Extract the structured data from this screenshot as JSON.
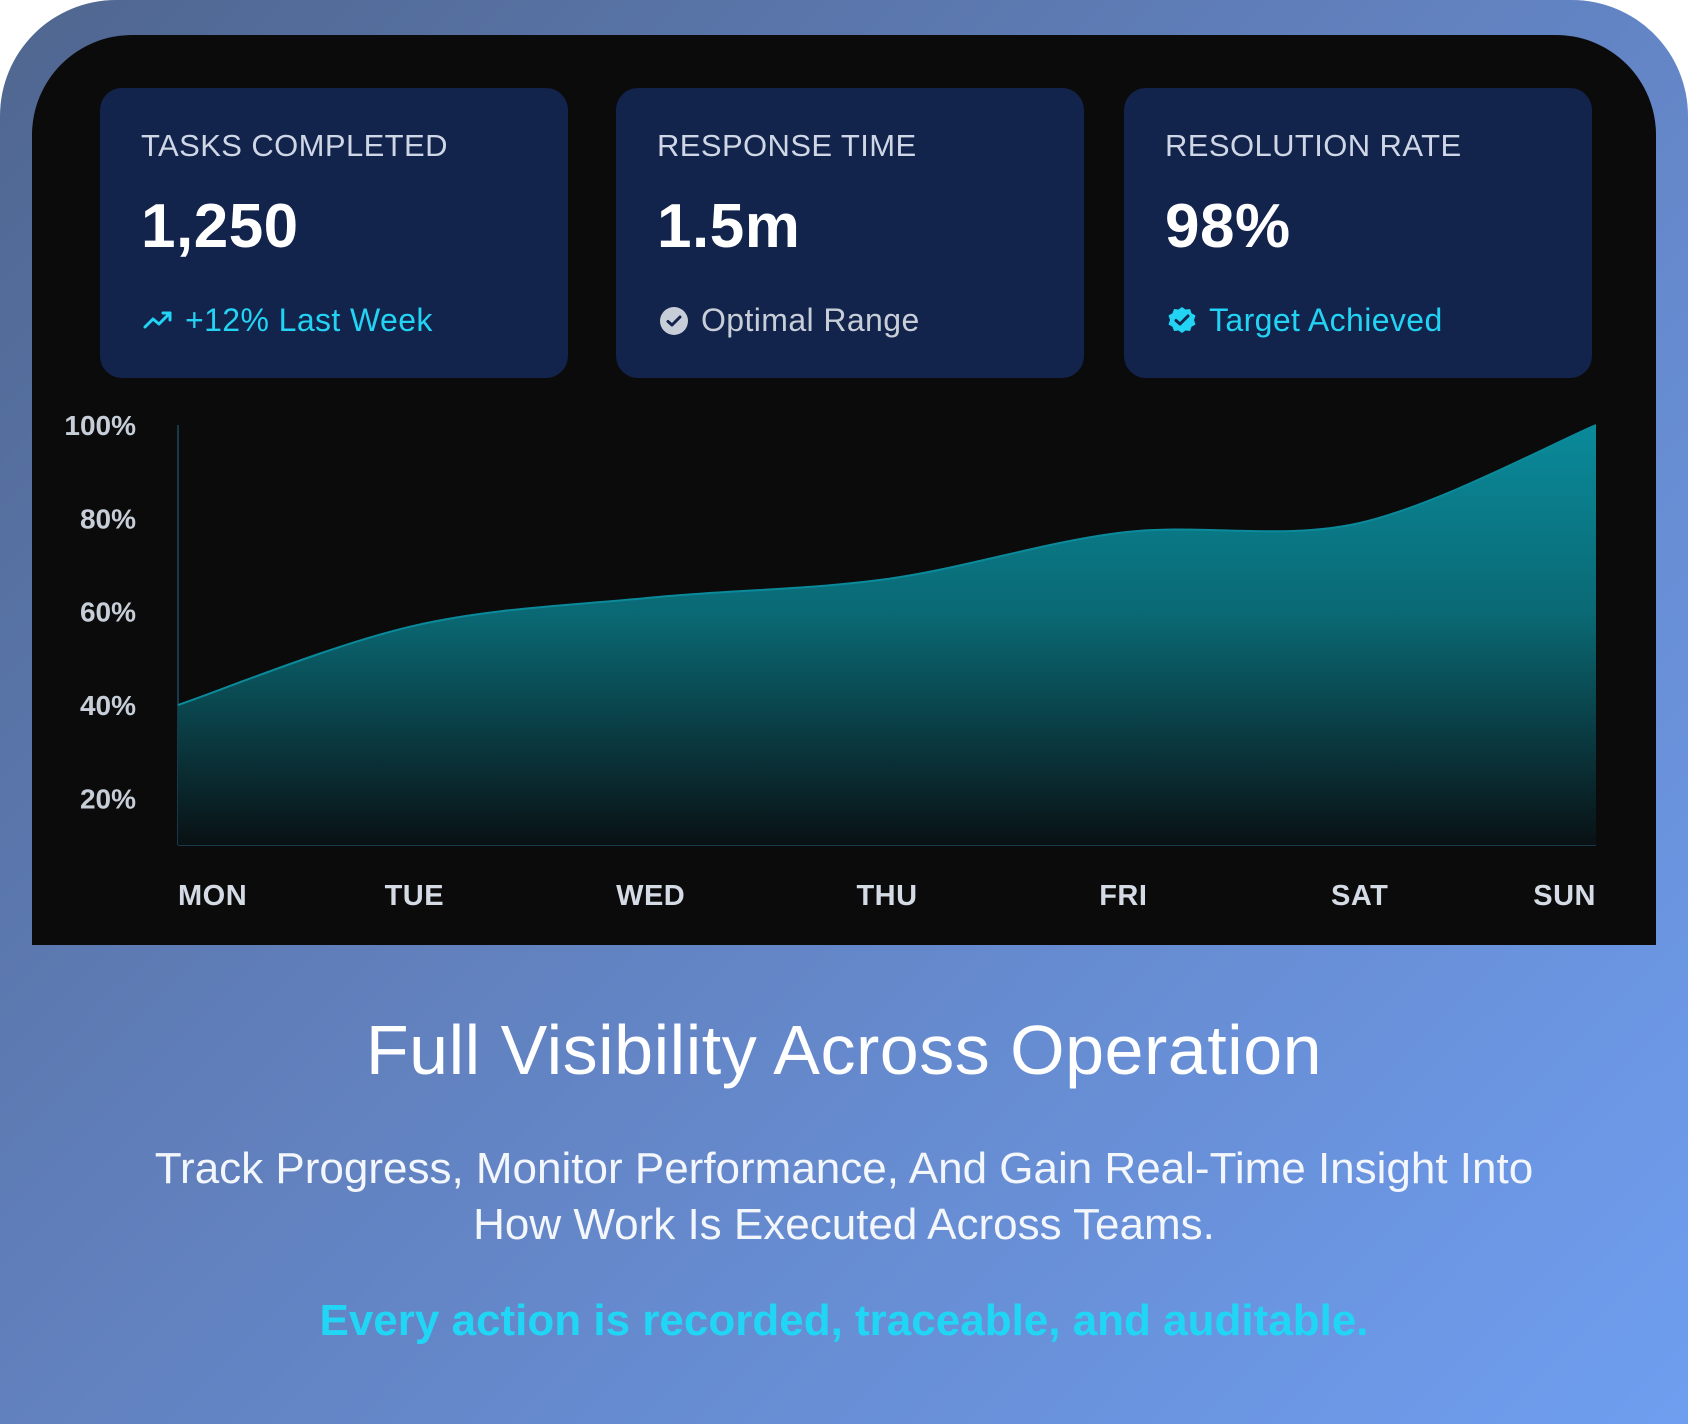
{
  "theme": {
    "accent": "#22D3F3",
    "card_bg": "#12234C",
    "panel_bg": "#0B0B0C"
  },
  "cards": [
    {
      "title": "TASKS COMPLETED",
      "value": "1,250",
      "meta": "+12% Last Week",
      "icon": "trend-up-icon"
    },
    {
      "title": "RESPONSE TIME",
      "value": "1.5m",
      "meta": "Optimal Range",
      "icon": "check-circle-icon"
    },
    {
      "title": "RESOLUTION RATE",
      "value": "98%",
      "meta": "Target Achieved",
      "icon": "verified-badge-icon"
    }
  ],
  "chart_data": {
    "type": "area",
    "categories": [
      "MON",
      "TUE",
      "WED",
      "THU",
      "FRI",
      "SAT",
      "SUN"
    ],
    "values": [
      40,
      57,
      63,
      67,
      77,
      79,
      100
    ],
    "y_ticks": [
      "100%",
      "80%",
      "60%",
      "40%",
      "20%"
    ],
    "ylim": [
      20,
      100
    ],
    "colors": {
      "fill_top": "#0A8A9A",
      "fill_bottom": "#091114",
      "axis": "#17394A"
    }
  },
  "footer": {
    "headline": "Full Visibility Across Operation",
    "description": "Track Progress, Monitor Performance, And Gain Real-Time Insight Into How Work Is Executed Across Teams.",
    "accent": "Every action is recorded, traceable, and auditable."
  }
}
